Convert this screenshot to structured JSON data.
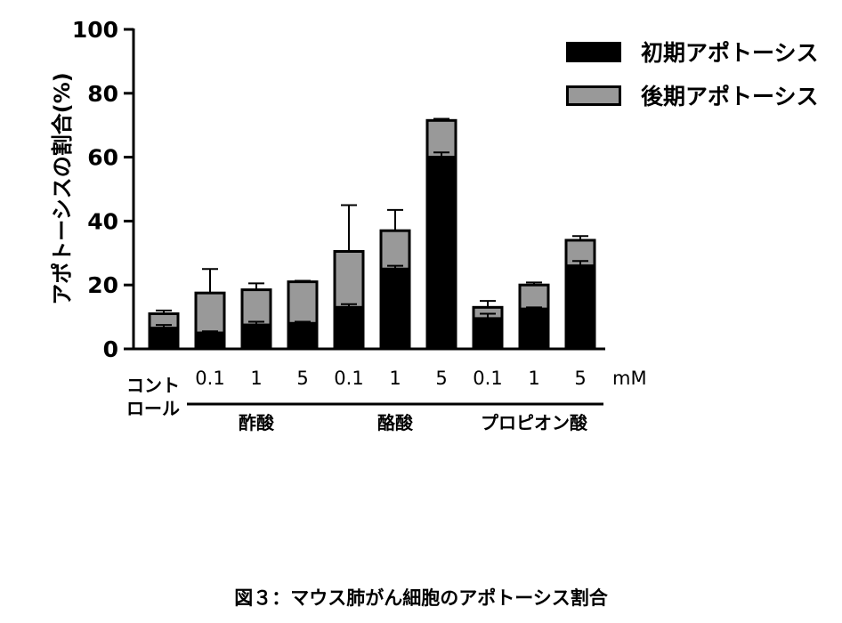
{
  "caption": "図３：マウス肺がん細胞のアポトーシス割合",
  "chart_data": {
    "type": "bar",
    "stacked": true,
    "title": "",
    "ylabel": "アポトーシスの割合(%)",
    "xlabel": "",
    "ylim": [
      0,
      100
    ],
    "yticks": [
      0,
      20,
      40,
      60,
      80,
      100
    ],
    "unit_label": "mM",
    "control_label": [
      "コント",
      "ロール"
    ],
    "categories": [
      "コントロール",
      "酢酸 0.1",
      "酢酸 1",
      "酢酸 5",
      "酪酸 0.1",
      "酪酸 1",
      "酪酸 5",
      "プロピオン酸 0.1",
      "プロピオン酸 1",
      "プロピオン酸 5"
    ],
    "tick_labels": [
      "",
      "0.1",
      "1",
      "5",
      "0.1",
      "1",
      "5",
      "0.1",
      "1",
      "5"
    ],
    "groups": [
      {
        "label": "酢酸",
        "from": 1,
        "to": 3
      },
      {
        "label": "酪酸",
        "from": 4,
        "to": 6
      },
      {
        "label": "プロピオン酸",
        "from": 7,
        "to": 9
      }
    ],
    "series": [
      {
        "name": "初期アポトーシス",
        "color": "#000000",
        "values": [
          6.5,
          5.0,
          7.5,
          8.0,
          13.0,
          25.0,
          60.0,
          9.5,
          12.5,
          26.0
        ],
        "error": [
          1.0,
          0.5,
          1.0,
          0.5,
          1.0,
          1.0,
          1.5,
          1.5,
          0.5,
          1.5
        ]
      },
      {
        "name": "後期アポトーシス",
        "color": "#999999",
        "values": [
          4.5,
          12.5,
          11.0,
          13.0,
          17.5,
          12.0,
          11.5,
          3.5,
          7.5,
          8.0
        ],
        "error": [
          1.0,
          7.5,
          2.0,
          0.3,
          14.5,
          6.5,
          0.5,
          2.0,
          0.8,
          1.3
        ]
      }
    ],
    "legend_position": "top-right",
    "grid": false
  }
}
